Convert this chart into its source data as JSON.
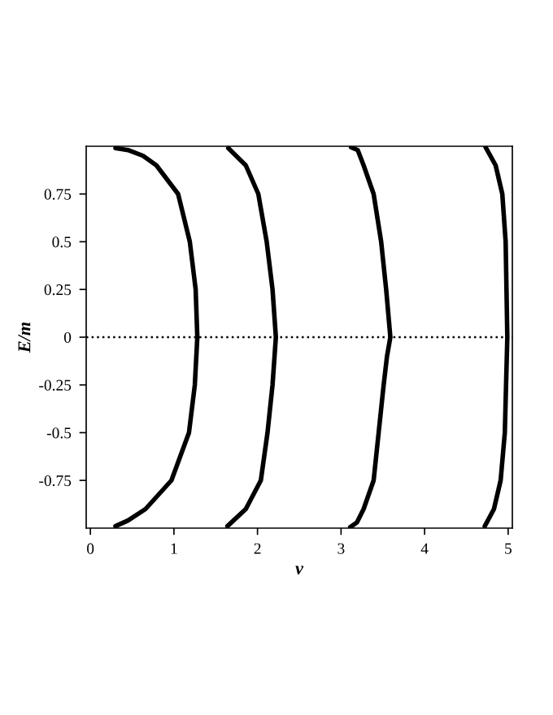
{
  "chart_data": {
    "type": "line",
    "xlabel": "v",
    "ylabel": "E/m",
    "xlim": [
      -0.05,
      5.05
    ],
    "ylim": [
      -1.0,
      1.0
    ],
    "xticks": [
      0,
      1,
      2,
      3,
      4,
      5
    ],
    "yticks": [
      -0.75,
      -0.5,
      -0.25,
      0,
      0.25,
      0.5,
      0.75
    ],
    "grid": false,
    "legend": false,
    "marker": "none",
    "line_style": "solid",
    "ref_lines": [
      {
        "axis": "y",
        "value": 0,
        "line_style": "dotted",
        "color": "#000000"
      }
    ],
    "series": [
      {
        "color": "#000000",
        "x": [
          0.3,
          0.45,
          0.63,
          0.79,
          1.05,
          1.19,
          1.26,
          1.28,
          1.25,
          1.18,
          0.97,
          0.66,
          0.45,
          0.3
        ],
        "values": [
          0.99,
          0.98,
          0.95,
          0.9,
          0.75,
          0.5,
          0.25,
          0,
          -0.25,
          -0.5,
          -0.75,
          -0.9,
          -0.96,
          -0.99
        ]
      },
      {
        "color": "#000000",
        "x": [
          1.65,
          1.86,
          2.01,
          2.11,
          2.18,
          2.22,
          2.18,
          2.12,
          2.04,
          1.86,
          1.64
        ],
        "values": [
          0.99,
          0.9,
          0.75,
          0.5,
          0.25,
          0,
          -0.25,
          -0.5,
          -0.75,
          -0.9,
          -0.99
        ]
      },
      {
        "color": "#000000",
        "x": [
          3.12,
          3.2,
          3.27,
          3.39,
          3.48,
          3.54,
          3.59,
          3.55,
          3.51,
          3.45,
          3.39,
          3.27,
          3.19,
          3.11
        ],
        "values": [
          0.995,
          0.98,
          0.9,
          0.75,
          0.5,
          0.25,
          0,
          -0.1,
          -0.25,
          -0.5,
          -0.75,
          -0.9,
          -0.97,
          -0.995
        ]
      },
      {
        "color": "#000000",
        "x": [
          4.73,
          4.85,
          4.93,
          4.97,
          4.99,
          4.96,
          4.91,
          4.83,
          4.72
        ],
        "values": [
          0.995,
          0.9,
          0.75,
          0.5,
          0,
          -0.5,
          -0.75,
          -0.9,
          -0.99
        ]
      }
    ]
  }
}
